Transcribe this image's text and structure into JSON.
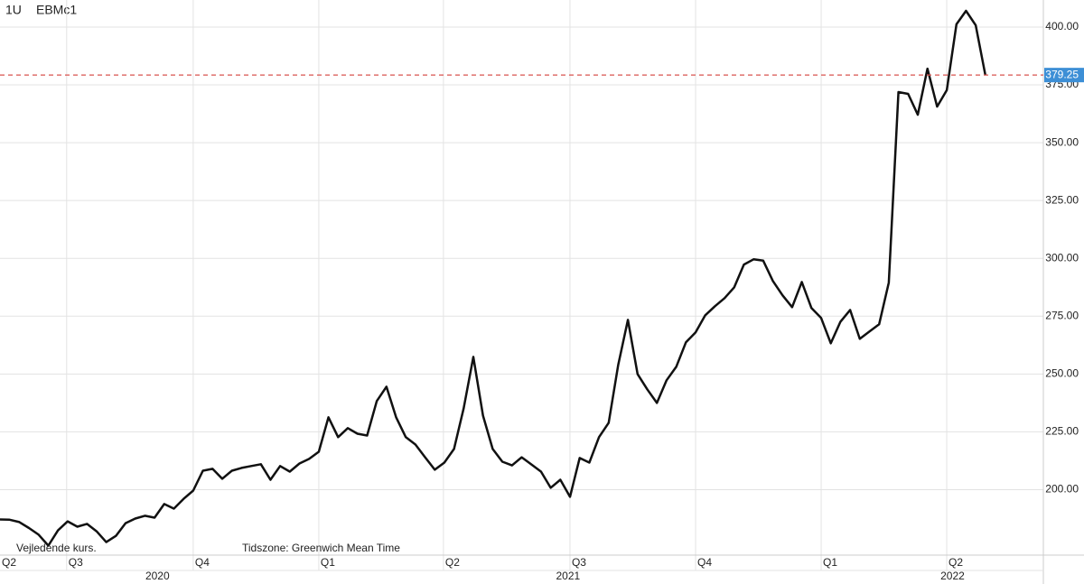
{
  "header": {
    "interval": "1U",
    "symbol": "EBMc1"
  },
  "footer": {
    "note": "Vejledende kurs.",
    "timezone": "Tidszone: Greenwich Mean Time"
  },
  "chart_data": {
    "type": "line",
    "color": "#111111",
    "grid": true,
    "values": [
      187.1,
      187,
      186,
      183.4,
      180.5,
      175.8,
      182.4,
      186.3,
      184,
      185.2,
      182,
      177.3,
      180,
      185.5,
      187.5,
      188.7,
      187.9,
      193.8,
      191.8,
      196,
      199.6,
      208.2,
      209,
      204.7,
      208.2,
      209.4,
      210.2,
      211,
      204.3,
      210.2,
      207.8,
      211.3,
      213.3,
      216.4,
      231.3,
      222.7,
      226.6,
      224.2,
      223.4,
      238.3,
      244.5,
      231.3,
      222.7,
      219.5,
      214,
      208.6,
      211.7,
      217.6,
      235.2,
      257.4,
      232,
      217.6,
      212.1,
      210.5,
      214,
      210.9,
      207.8,
      200.8,
      204.3,
      196.9,
      213.7,
      211.7,
      222.7,
      228.9,
      254,
      273.4,
      250,
      243.4,
      237.5,
      247.3,
      253.1,
      263.7,
      268,
      275.4,
      279.3,
      282.8,
      287.5,
      297.3,
      299.6,
      299,
      290.2,
      284,
      278.9,
      289.8,
      278.5,
      274.2,
      263.3,
      272.6,
      277.7,
      265.2,
      268.4,
      271.5,
      289.5,
      371.9,
      371.1,
      362.1,
      382,
      365.6,
      372.7,
      401.2,
      407,
      400.8,
      379.25
    ],
    "xlim": [
      0,
      108
    ],
    "xticks": [
      {
        "value": 0,
        "label": "Q2"
      },
      {
        "value": 6.9,
        "label": "Q3"
      },
      {
        "value": 20,
        "label": "Q4"
      },
      {
        "value": 33,
        "label": "Q1"
      },
      {
        "value": 45.9,
        "label": "Q2"
      },
      {
        "value": 59,
        "label": "Q3"
      },
      {
        "value": 72,
        "label": "Q4"
      },
      {
        "value": 85,
        "label": "Q1"
      },
      {
        "value": 98,
        "label": "Q2"
      }
    ],
    "year_ticks": [
      {
        "value": 16.3,
        "label": "2020"
      },
      {
        "value": 58.8,
        "label": "2021"
      },
      {
        "value": 98.6,
        "label": "2022"
      }
    ],
    "ylim": [
      171.7,
      411.7
    ],
    "yticks": [
      {
        "value": 200,
        "label": "200.00"
      },
      {
        "value": 225,
        "label": "225.00"
      },
      {
        "value": 250,
        "label": "250.00"
      },
      {
        "value": 275,
        "label": "275.00"
      },
      {
        "value": 300,
        "label": "300.00"
      },
      {
        "value": 325,
        "label": "325.00"
      },
      {
        "value": 350,
        "label": "350.00"
      },
      {
        "value": 375,
        "label": "375.00"
      },
      {
        "value": 400,
        "label": "400.00"
      }
    ],
    "last_price": 379.25,
    "last_price_color": "#3d8fd6",
    "last_line_color": "#d9534f"
  }
}
